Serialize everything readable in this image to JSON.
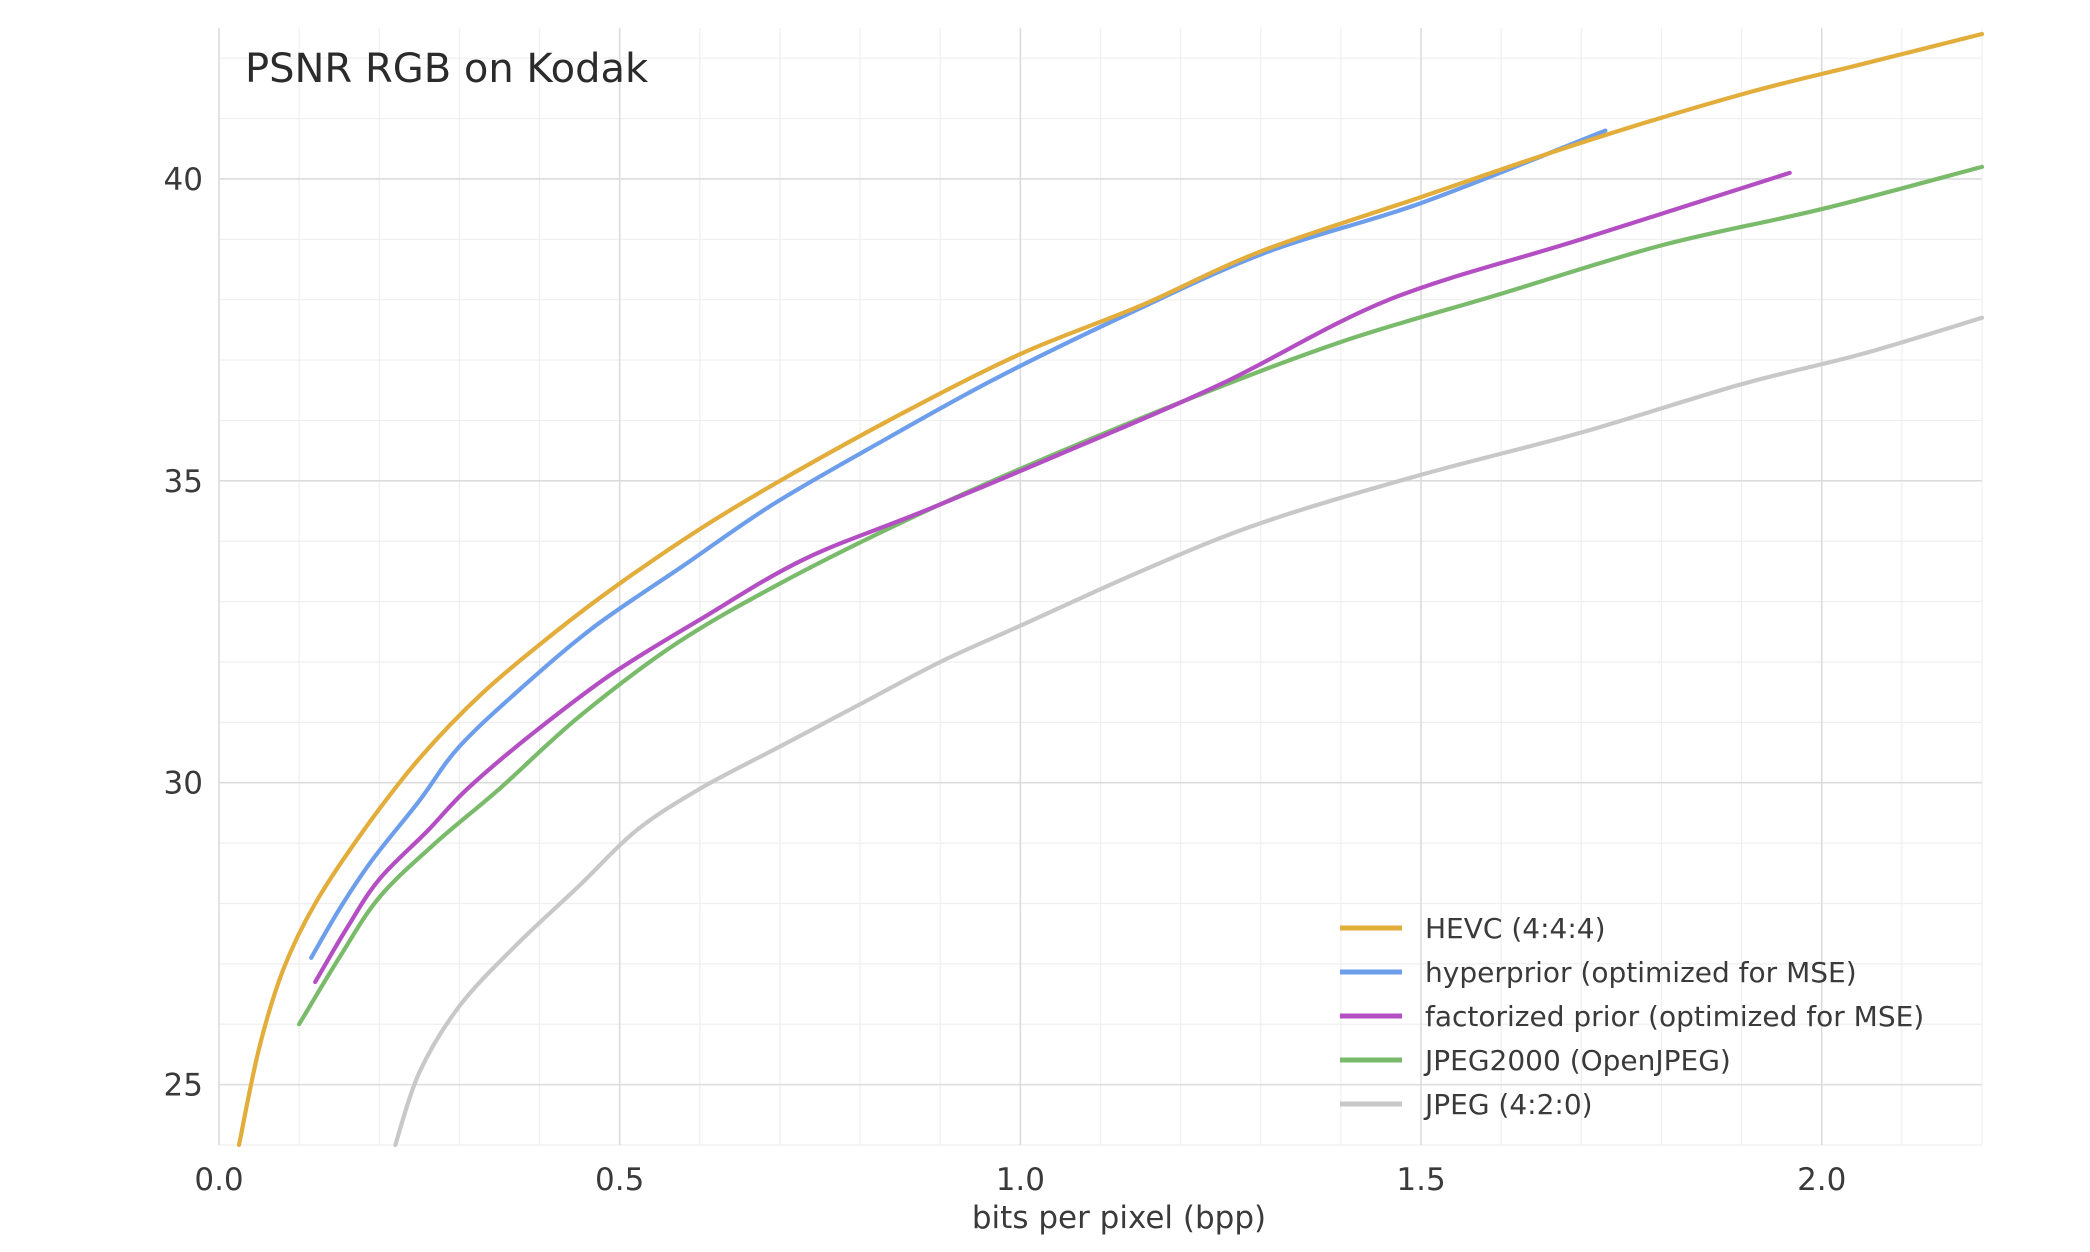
{
  "chart_data": {
    "type": "line",
    "title": "PSNR RGB on Kodak",
    "xlabel": "bits per pixel (bpp)",
    "ylabel": "",
    "xlim": [
      0.0,
      2.2
    ],
    "ylim": [
      24.0,
      42.5
    ],
    "x_ticks": [
      {
        "value": 0.0,
        "label": "0.0"
      },
      {
        "value": 0.5,
        "label": "0.5"
      },
      {
        "value": 1.0,
        "label": "1.0"
      },
      {
        "value": 1.5,
        "label": "1.5"
      },
      {
        "value": 2.0,
        "label": "2.0"
      }
    ],
    "y_ticks": [
      {
        "value": 25,
        "label": "25"
      },
      {
        "value": 30,
        "label": "30"
      },
      {
        "value": 35,
        "label": "35"
      },
      {
        "value": 40,
        "label": "40"
      }
    ],
    "grid": true,
    "legend_position": "bottom-right",
    "series": [
      {
        "name": "HEVC (4:4:4)",
        "color": "#e2ad3b",
        "points": [
          [
            0.025,
            24.0
          ],
          [
            0.05,
            25.6
          ],
          [
            0.08,
            26.9
          ],
          [
            0.12,
            28.0
          ],
          [
            0.18,
            29.2
          ],
          [
            0.25,
            30.4
          ],
          [
            0.33,
            31.5
          ],
          [
            0.42,
            32.5
          ],
          [
            0.5,
            33.3
          ],
          [
            0.6,
            34.2
          ],
          [
            0.7,
            35.0
          ],
          [
            0.85,
            36.1
          ],
          [
            1.0,
            37.1
          ],
          [
            1.15,
            37.9
          ],
          [
            1.3,
            38.8
          ],
          [
            1.5,
            39.7
          ],
          [
            1.7,
            40.6
          ],
          [
            1.9,
            41.4
          ],
          [
            2.05,
            41.9
          ],
          [
            2.2,
            42.4
          ]
        ]
      },
      {
        "name": "hyperprior (optimized for MSE)",
        "color": "#6d9eeb",
        "points": [
          [
            0.115,
            27.1
          ],
          [
            0.15,
            27.9
          ],
          [
            0.19,
            28.7
          ],
          [
            0.25,
            29.7
          ],
          [
            0.3,
            30.6
          ],
          [
            0.38,
            31.6
          ],
          [
            0.47,
            32.6
          ],
          [
            0.58,
            33.6
          ],
          [
            0.69,
            34.6
          ],
          [
            0.82,
            35.6
          ],
          [
            0.97,
            36.7
          ],
          [
            1.14,
            37.8
          ],
          [
            1.31,
            38.8
          ],
          [
            1.5,
            39.6
          ],
          [
            1.73,
            40.8
          ]
        ]
      },
      {
        "name": "factorized prior (optimized for MSE)",
        "color": "#b44ec3",
        "points": [
          [
            0.12,
            26.7
          ],
          [
            0.16,
            27.6
          ],
          [
            0.2,
            28.4
          ],
          [
            0.26,
            29.2
          ],
          [
            0.31,
            29.9
          ],
          [
            0.39,
            30.8
          ],
          [
            0.49,
            31.8
          ],
          [
            0.6,
            32.7
          ],
          [
            0.73,
            33.7
          ],
          [
            0.88,
            34.5
          ],
          [
            1.06,
            35.5
          ],
          [
            1.25,
            36.6
          ],
          [
            1.46,
            38.0
          ],
          [
            1.7,
            39.0
          ],
          [
            1.96,
            40.1
          ]
        ]
      },
      {
        "name": "JPEG2000 (OpenJPEG)",
        "color": "#79bb6a",
        "points": [
          [
            0.1,
            26.0
          ],
          [
            0.15,
            27.1
          ],
          [
            0.2,
            28.1
          ],
          [
            0.27,
            29.0
          ],
          [
            0.35,
            29.9
          ],
          [
            0.45,
            31.1
          ],
          [
            0.57,
            32.3
          ],
          [
            0.7,
            33.3
          ],
          [
            0.85,
            34.3
          ],
          [
            1.0,
            35.2
          ],
          [
            1.2,
            36.3
          ],
          [
            1.4,
            37.3
          ],
          [
            1.6,
            38.1
          ],
          [
            1.8,
            38.9
          ],
          [
            2.0,
            39.5
          ],
          [
            2.2,
            40.2
          ]
        ]
      },
      {
        "name": "JPEG (4:2:0)",
        "color": "#c8c8c8",
        "points": [
          [
            0.22,
            24.0
          ],
          [
            0.25,
            25.2
          ],
          [
            0.3,
            26.3
          ],
          [
            0.37,
            27.3
          ],
          [
            0.45,
            28.3
          ],
          [
            0.52,
            29.2
          ],
          [
            0.6,
            29.9
          ],
          [
            0.7,
            30.6
          ],
          [
            0.8,
            31.3
          ],
          [
            0.9,
            32.0
          ],
          [
            1.0,
            32.6
          ],
          [
            1.15,
            33.5
          ],
          [
            1.3,
            34.3
          ],
          [
            1.5,
            35.1
          ],
          [
            1.7,
            35.8
          ],
          [
            1.9,
            36.6
          ],
          [
            2.05,
            37.1
          ],
          [
            2.2,
            37.7
          ]
        ]
      }
    ]
  }
}
